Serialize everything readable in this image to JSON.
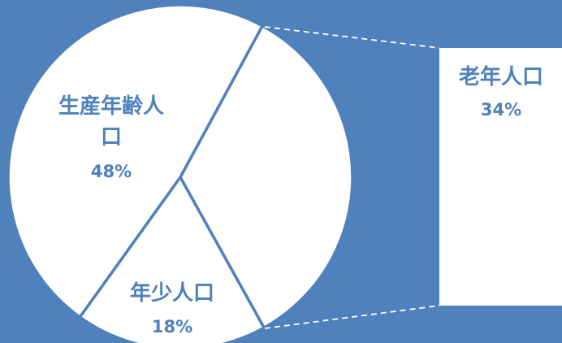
{
  "colors": {
    "background": "#4f81bd",
    "slice_fill": "#ffffff",
    "slice_border": "#4f81bd",
    "label_text": "#4f81bd",
    "connector_line": "#ffffff"
  },
  "chart_data": {
    "type": "pie",
    "categories": [
      "老年人口",
      "年少人口",
      "生産年齢人口"
    ],
    "values": [
      34,
      18,
      48
    ],
    "value_suffix": "%",
    "labels": [
      {
        "category_lines": [
          "老年人口"
        ],
        "value": "34%"
      },
      {
        "category_lines": [
          "年少人口"
        ],
        "value": "18%"
      },
      {
        "category_lines": [
          "生産年齢人",
          "口"
        ],
        "value": "48%"
      }
    ],
    "exploded_slice": "老年人口"
  }
}
